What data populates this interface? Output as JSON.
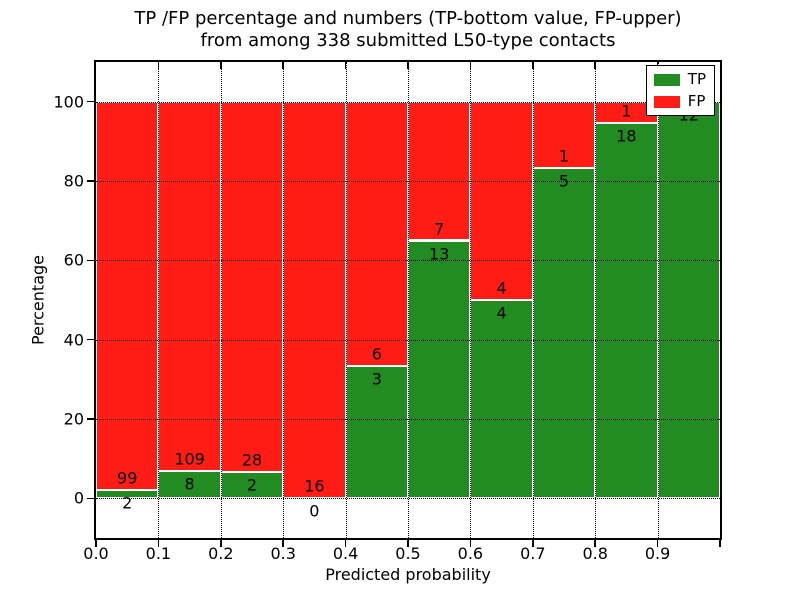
{
  "figure": {
    "title_line1": "TP /FP percentage and numbers (TP-bottom value, FP-upper)",
    "title_line2": "from among 338 submitted L50-type contacts",
    "background": "#ffffff"
  },
  "chart_data": {
    "type": "bar",
    "subtype": "stacked-percentage-histogram",
    "title": "TP /FP percentage and numbers (TP-bottom value, FP-upper) from among 338 submitted L50-type contacts",
    "xlabel": "Predicted probability",
    "ylabel": "Percentage",
    "total_contacts": 338,
    "xlim": [
      0.0,
      1.0
    ],
    "ylim": [
      -10,
      110
    ],
    "xticks": [
      "0.0",
      "0.1",
      "0.2",
      "0.3",
      "0.4",
      "0.5",
      "0.6",
      "0.7",
      "0.8",
      "0.9"
    ],
    "yticks": [
      0,
      20,
      40,
      60,
      80,
      100
    ],
    "grid": true,
    "grid_style": "dotted",
    "bin_width": 0.1,
    "bins": [
      {
        "range": "0.0-0.1",
        "tp": 2,
        "fp": 99,
        "tp_pct": 1.98
      },
      {
        "range": "0.1-0.2",
        "tp": 8,
        "fp": 109,
        "tp_pct": 6.84
      },
      {
        "range": "0.2-0.3",
        "tp": 2,
        "fp": 28,
        "tp_pct": 6.67
      },
      {
        "range": "0.3-0.4",
        "tp": 0,
        "fp": 16,
        "tp_pct": 0.0
      },
      {
        "range": "0.4-0.5",
        "tp": 3,
        "fp": 6,
        "tp_pct": 33.33
      },
      {
        "range": "0.5-0.6",
        "tp": 13,
        "fp": 7,
        "tp_pct": 65.0
      },
      {
        "range": "0.6-0.7",
        "tp": 4,
        "fp": 4,
        "tp_pct": 50.0
      },
      {
        "range": "0.7-0.8",
        "tp": 5,
        "fp": 1,
        "tp_pct": 83.33
      },
      {
        "range": "0.8-0.9",
        "tp": 18,
        "fp": 1,
        "tp_pct": 94.74
      },
      {
        "range": "0.9-1.0",
        "tp": 12,
        "fp": 0,
        "tp_pct": 100.0
      }
    ],
    "series": [
      {
        "name": "TP",
        "color": "#228b22",
        "values": [
          2,
          8,
          2,
          0,
          3,
          13,
          4,
          5,
          18,
          12
        ]
      },
      {
        "name": "FP",
        "color": "#ff1c14",
        "values": [
          99,
          109,
          28,
          16,
          6,
          7,
          4,
          1,
          1,
          0
        ]
      }
    ],
    "legend": {
      "position": "upper-right",
      "items": [
        {
          "label": "TP",
          "color": "#228b22"
        },
        {
          "label": "FP",
          "color": "#ff1c14"
        }
      ]
    }
  }
}
